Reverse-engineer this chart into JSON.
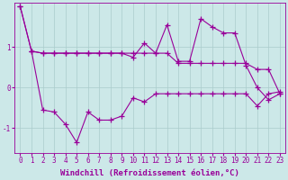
{
  "background_color": "#cce8e8",
  "grid_color": "#aacccc",
  "line_color": "#990099",
  "marker_style": "+",
  "marker_size": 4,
  "line_width": 0.8,
  "xlabel": "Windchill (Refroidissement éolien,°C)",
  "xlabel_fontsize": 6.5,
  "tick_fontsize": 5.5,
  "xlim": [
    -0.5,
    23.5
  ],
  "ylim": [
    -1.6,
    2.1
  ],
  "yticks": [
    -1,
    0,
    1
  ],
  "xticks": [
    0,
    1,
    2,
    3,
    4,
    5,
    6,
    7,
    8,
    9,
    10,
    11,
    12,
    13,
    14,
    15,
    16,
    17,
    18,
    19,
    20,
    21,
    22,
    23
  ],
  "series": [
    {
      "x": [
        0,
        1,
        2,
        3,
        4,
        5,
        6,
        7,
        8,
        9,
        10,
        11,
        12,
        13,
        14,
        15,
        16,
        17,
        18,
        19,
        20,
        21,
        22,
        23
      ],
      "y": [
        2.0,
        0.9,
        0.85,
        0.85,
        0.85,
        0.85,
        0.85,
        0.85,
        0.85,
        0.85,
        0.85,
        0.85,
        0.85,
        0.85,
        0.6,
        0.6,
        0.6,
        0.6,
        0.6,
        0.6,
        0.6,
        0.45,
        0.45,
        -0.15
      ]
    },
    {
      "x": [
        0,
        1,
        2,
        3,
        4,
        5,
        6,
        7,
        8,
        9,
        10,
        11,
        12,
        13,
        14,
        15,
        16,
        17,
        18,
        19,
        20,
        21,
        22,
        23
      ],
      "y": [
        2.0,
        0.9,
        0.85,
        0.85,
        0.85,
        0.85,
        0.85,
        0.85,
        0.85,
        0.85,
        0.75,
        1.1,
        0.85,
        1.55,
        0.65,
        0.65,
        1.7,
        1.5,
        1.35,
        1.35,
        0.55,
        0.0,
        -0.3,
        -0.15
      ]
    },
    {
      "x": [
        1,
        2,
        3,
        4,
        5,
        6,
        7,
        8,
        9,
        10,
        11,
        12,
        13,
        14,
        15,
        16,
        17,
        18,
        19,
        20,
        21,
        22,
        23
      ],
      "y": [
        0.9,
        -0.55,
        -0.6,
        -0.9,
        -1.35,
        -0.6,
        -0.8,
        -0.8,
        -0.7,
        -0.25,
        -0.35,
        -0.15,
        -0.15,
        -0.15,
        -0.15,
        -0.15,
        -0.15,
        -0.15,
        -0.15,
        -0.15,
        -0.45,
        -0.15,
        -0.1
      ]
    }
  ]
}
